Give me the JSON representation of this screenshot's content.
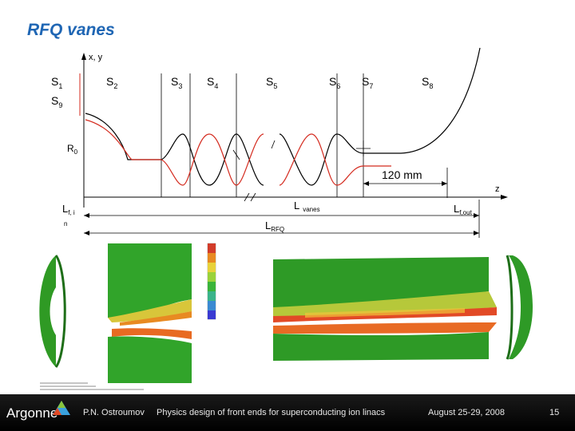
{
  "slide": {
    "title": "RFQ vanes"
  },
  "diagram": {
    "axis_xy": "x, y",
    "axis_z": "z",
    "sections": [
      {
        "main": "S",
        "sub": "1"
      },
      {
        "main": "S",
        "sub": "9"
      },
      {
        "main": "S",
        "sub": "2"
      },
      {
        "main": "S",
        "sub": "3"
      },
      {
        "main": "S",
        "sub": "4"
      },
      {
        "main": "S",
        "sub": "5"
      },
      {
        "main": "S",
        "sub": "6"
      },
      {
        "main": "S",
        "sub": "7"
      },
      {
        "main": "S",
        "sub": "8"
      }
    ],
    "r0": {
      "main": "R",
      "sub": "0"
    },
    "dim_120": "120 mm",
    "lfi": {
      "main": "L",
      "sub": "f, i"
    },
    "lfi_small": "n",
    "lvanes": {
      "main": "L",
      "sub": "vanes"
    },
    "lfout": {
      "main": "L",
      "sub": "f,out"
    },
    "lrfq": {
      "main": "L",
      "sub": "RFQ"
    },
    "colors": {
      "curve_black": "#000000",
      "curve_red": "#d42a1e",
      "title": "#1f66b4"
    }
  },
  "footer": {
    "logo": "Argonne",
    "author": "P.N. Ostroumov",
    "talk": "Physics design of front ends for superconducting ion linacs",
    "date": "August 25-29, 2008",
    "page": "15"
  }
}
